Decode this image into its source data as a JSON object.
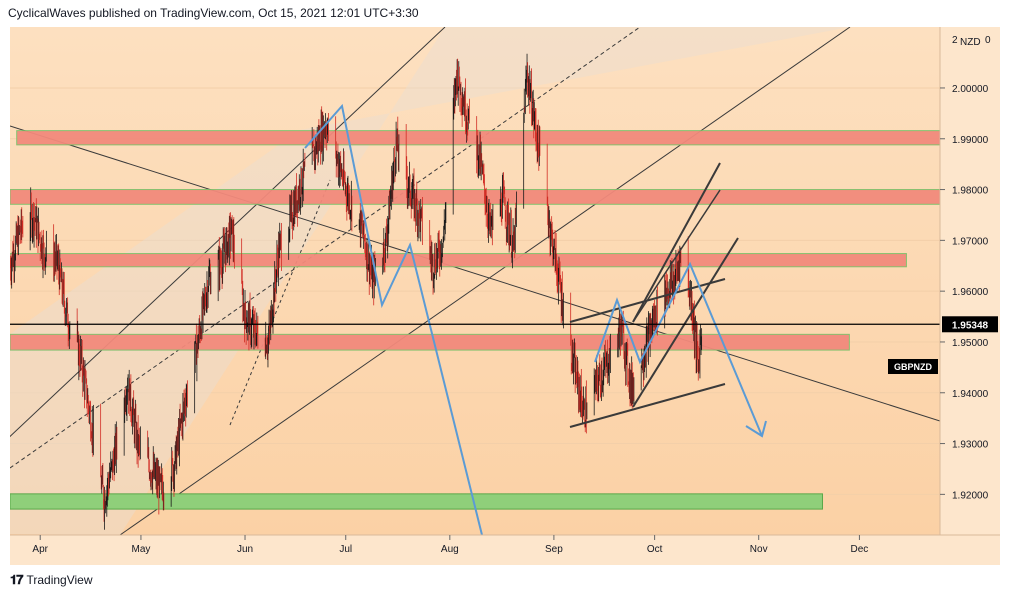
{
  "header": {
    "text": "CyclicalWaves published on TradingView.com, Oct 15, 2021 12:01 UTC+3:30"
  },
  "footer": {
    "brand": "TradingView",
    "logo_icon": "tradingview-logo-icon"
  },
  "chart_data": {
    "type": "candlestick",
    "symbol": "GBPNZD",
    "currency": "NZD",
    "axis_top_fragment": "2",
    "axis_top_right": "0",
    "last_price_label": "1.95348",
    "last_price": 1.95348,
    "ylim": [
      1.912,
      2.012
    ],
    "y_ticks": [
      "2.00000",
      "1.99000",
      "1.98000",
      "1.97000",
      "1.96000",
      "1.95000",
      "1.94000",
      "1.93000",
      "1.92000"
    ],
    "y_tick_values": [
      2.0,
      1.99,
      1.98,
      1.97,
      1.96,
      1.95,
      1.94,
      1.93,
      1.92
    ],
    "x_ticks": [
      "Apr",
      "May",
      "Jun",
      "Jul",
      "Aug",
      "Sep",
      "Oct",
      "Nov",
      "Dec"
    ],
    "x_tick_dates": [
      "2021-04-01",
      "2021-05-01",
      "2021-06-01",
      "2021-07-01",
      "2021-08-01",
      "2021-09-01",
      "2021-10-01",
      "2021-11-01",
      "2021-12-01"
    ],
    "xlim": [
      "2021-03-23",
      "2021-12-25"
    ],
    "price_path": [
      [
        "2021-03-23",
        1.965
      ],
      [
        "2021-03-26",
        1.972
      ],
      [
        "2021-03-30",
        1.975
      ],
      [
        "2021-04-02",
        1.968
      ],
      [
        "2021-04-06",
        1.966
      ],
      [
        "2021-04-09",
        1.955
      ],
      [
        "2021-04-13",
        1.947
      ],
      [
        "2021-04-16",
        1.935
      ],
      [
        "2021-04-20",
        1.919
      ],
      [
        "2021-04-23",
        1.927
      ],
      [
        "2021-04-27",
        1.942
      ],
      [
        "2021-04-30",
        1.93
      ],
      [
        "2021-05-04",
        1.925
      ],
      [
        "2021-05-07",
        1.921
      ],
      [
        "2021-05-11",
        1.926
      ],
      [
        "2021-05-14",
        1.938
      ],
      [
        "2021-05-18",
        1.95
      ],
      [
        "2021-05-21",
        1.962
      ],
      [
        "2021-05-25",
        1.966
      ],
      [
        "2021-05-28",
        1.972
      ],
      [
        "2021-06-01",
        1.955
      ],
      [
        "2021-06-04",
        1.952
      ],
      [
        "2021-06-08",
        1.95
      ],
      [
        "2021-06-11",
        1.968
      ],
      [
        "2021-06-15",
        1.975
      ],
      [
        "2021-06-18",
        1.982
      ],
      [
        "2021-06-22",
        1.988
      ],
      [
        "2021-06-25",
        1.993
      ],
      [
        "2021-06-29",
        1.985
      ],
      [
        "2021-07-02",
        1.978
      ],
      [
        "2021-07-06",
        1.972
      ],
      [
        "2021-07-09",
        1.962
      ],
      [
        "2021-07-13",
        1.97
      ],
      [
        "2021-07-16",
        1.989
      ],
      [
        "2021-07-20",
        1.98
      ],
      [
        "2021-07-23",
        1.975
      ],
      [
        "2021-07-27",
        1.965
      ],
      [
        "2021-07-30",
        1.97
      ],
      [
        "2021-08-03",
        2.003
      ],
      [
        "2021-08-06",
        1.995
      ],
      [
        "2021-08-10",
        1.986
      ],
      [
        "2021-08-13",
        1.972
      ],
      [
        "2021-08-17",
        1.978
      ],
      [
        "2021-08-20",
        1.968
      ],
      [
        "2021-08-24",
        2.003
      ],
      [
        "2021-08-27",
        1.99
      ],
      [
        "2021-08-31",
        1.972
      ],
      [
        "2021-09-03",
        1.96
      ],
      [
        "2021-09-07",
        1.945
      ],
      [
        "2021-09-10",
        1.936
      ],
      [
        "2021-09-14",
        1.942
      ],
      [
        "2021-09-17",
        1.946
      ],
      [
        "2021-09-21",
        1.953
      ],
      [
        "2021-09-24",
        1.941
      ],
      [
        "2021-09-28",
        1.948
      ],
      [
        "2021-10-01",
        1.955
      ],
      [
        "2021-10-04",
        1.96
      ],
      [
        "2021-10-07",
        1.962
      ],
      [
        "2021-10-09",
        1.968
      ],
      [
        "2021-10-12",
        1.958
      ],
      [
        "2021-10-14",
        1.945
      ],
      [
        "2021-10-15",
        1.953
      ]
    ],
    "zones_red": [
      {
        "from": "2021-03-25",
        "to": "2021-12-25",
        "y_top": 1.9916,
        "y_bottom": 1.9888
      },
      {
        "from": "2021-03-23",
        "to": "2021-12-25",
        "y_top": 1.98,
        "y_bottom": 1.9771
      },
      {
        "from": "2021-03-23",
        "to": "2021-12-15",
        "y_top": 1.9674,
        "y_bottom": 1.9648
      },
      {
        "from": "2021-03-23",
        "to": "2021-11-28",
        "y_top": 1.9515,
        "y_bottom": 1.9484
      }
    ],
    "zones_green": [
      {
        "from": "2021-03-23",
        "to": "2021-11-20",
        "y_top": 1.9201,
        "y_bottom": 1.9171
      }
    ]
  }
}
